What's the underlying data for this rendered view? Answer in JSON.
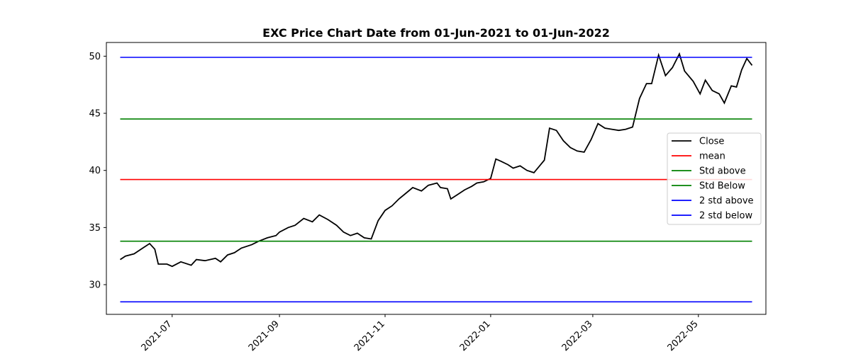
{
  "chart_data": {
    "type": "line",
    "title": "EXC Price Chart Date from 01-Jun-2021 to 01-Jun-2022",
    "xlabel": "",
    "ylabel": "",
    "xlim": [
      "2021-05-24",
      "2022-06-09"
    ],
    "ylim": [
      27.4,
      51.2
    ],
    "x_ticks": [
      "2021-07",
      "2021-09",
      "2021-11",
      "2022-01",
      "2022-03",
      "2022-05"
    ],
    "y_ticks": [
      30,
      35,
      40,
      45,
      50
    ],
    "grid": false,
    "legend_position": "center-right",
    "series": [
      {
        "name": "Close",
        "color": "#000000",
        "points": [
          [
            "2021-06-01",
            32.2
          ],
          [
            "2021-06-04",
            32.5
          ],
          [
            "2021-06-09",
            32.7
          ],
          [
            "2021-06-14",
            33.2
          ],
          [
            "2021-06-18",
            33.6
          ],
          [
            "2021-06-21",
            33.1
          ],
          [
            "2021-06-23",
            31.8
          ],
          [
            "2021-06-28",
            31.8
          ],
          [
            "2021-07-01",
            31.6
          ],
          [
            "2021-07-06",
            32.0
          ],
          [
            "2021-07-12",
            31.7
          ],
          [
            "2021-07-15",
            32.2
          ],
          [
            "2021-07-20",
            32.1
          ],
          [
            "2021-07-26",
            32.3
          ],
          [
            "2021-07-29",
            32.0
          ],
          [
            "2021-08-02",
            32.6
          ],
          [
            "2021-08-06",
            32.8
          ],
          [
            "2021-08-10",
            33.2
          ],
          [
            "2021-08-16",
            33.5
          ],
          [
            "2021-08-20",
            33.8
          ],
          [
            "2021-08-25",
            34.1
          ],
          [
            "2021-08-30",
            34.3
          ],
          [
            "2021-09-01",
            34.6
          ],
          [
            "2021-09-06",
            35.0
          ],
          [
            "2021-09-10",
            35.2
          ],
          [
            "2021-09-15",
            35.8
          ],
          [
            "2021-09-20",
            35.5
          ],
          [
            "2021-09-24",
            36.1
          ],
          [
            "2021-09-29",
            35.7
          ],
          [
            "2021-10-04",
            35.2
          ],
          [
            "2021-10-08",
            34.6
          ],
          [
            "2021-10-12",
            34.3
          ],
          [
            "2021-10-16",
            34.5
          ],
          [
            "2021-10-20",
            34.1
          ],
          [
            "2021-10-24",
            34.0
          ],
          [
            "2021-10-28",
            35.6
          ],
          [
            "2021-11-01",
            36.5
          ],
          [
            "2021-11-05",
            36.9
          ],
          [
            "2021-11-09",
            37.5
          ],
          [
            "2021-11-13",
            38.0
          ],
          [
            "2021-11-17",
            38.5
          ],
          [
            "2021-11-22",
            38.2
          ],
          [
            "2021-11-26",
            38.7
          ],
          [
            "2021-12-01",
            38.9
          ],
          [
            "2021-12-03",
            38.5
          ],
          [
            "2021-12-07",
            38.4
          ],
          [
            "2021-12-09",
            37.5
          ],
          [
            "2021-12-13",
            37.9
          ],
          [
            "2021-12-17",
            38.3
          ],
          [
            "2021-12-21",
            38.6
          ],
          [
            "2021-12-24",
            38.9
          ],
          [
            "2021-12-28",
            39.0
          ],
          [
            "2022-01-01",
            39.3
          ],
          [
            "2022-01-04",
            41.0
          ],
          [
            "2022-01-07",
            40.8
          ],
          [
            "2022-01-11",
            40.5
          ],
          [
            "2022-01-14",
            40.2
          ],
          [
            "2022-01-18",
            40.4
          ],
          [
            "2022-01-22",
            40.0
          ],
          [
            "2022-01-26",
            39.8
          ],
          [
            "2022-02-01",
            40.9
          ],
          [
            "2022-02-04",
            43.7
          ],
          [
            "2022-02-08",
            43.5
          ],
          [
            "2022-02-12",
            42.6
          ],
          [
            "2022-02-16",
            42.0
          ],
          [
            "2022-02-20",
            41.7
          ],
          [
            "2022-02-24",
            41.6
          ],
          [
            "2022-02-28",
            42.7
          ],
          [
            "2022-03-04",
            44.1
          ],
          [
            "2022-03-08",
            43.7
          ],
          [
            "2022-03-12",
            43.6
          ],
          [
            "2022-03-16",
            43.5
          ],
          [
            "2022-03-20",
            43.6
          ],
          [
            "2022-03-24",
            43.8
          ],
          [
            "2022-03-28",
            46.3
          ],
          [
            "2022-04-01",
            47.6
          ],
          [
            "2022-04-04",
            47.6
          ],
          [
            "2022-04-08",
            50.1
          ],
          [
            "2022-04-12",
            48.3
          ],
          [
            "2022-04-16",
            49.0
          ],
          [
            "2022-04-20",
            50.2
          ],
          [
            "2022-04-23",
            48.7
          ],
          [
            "2022-04-28",
            47.8
          ],
          [
            "2022-05-02",
            46.7
          ],
          [
            "2022-05-05",
            47.9
          ],
          [
            "2022-05-09",
            47.0
          ],
          [
            "2022-05-13",
            46.7
          ],
          [
            "2022-05-16",
            45.9
          ],
          [
            "2022-05-20",
            47.4
          ],
          [
            "2022-05-23",
            47.3
          ],
          [
            "2022-05-26",
            48.8
          ],
          [
            "2022-05-29",
            49.8
          ],
          [
            "2022-06-01",
            49.2
          ]
        ]
      },
      {
        "name": "mean",
        "color": "#ff0000",
        "value": 39.2,
        "x_range": [
          "2021-06-01",
          "2022-06-01"
        ]
      },
      {
        "name": "Std above",
        "color": "#008000",
        "value": 44.5,
        "x_range": [
          "2021-06-01",
          "2022-06-01"
        ]
      },
      {
        "name": "Std Below",
        "color": "#008000",
        "value": 33.8,
        "x_range": [
          "2021-06-01",
          "2022-06-01"
        ]
      },
      {
        "name": "2 std above",
        "color": "#0000ff",
        "value": 49.9,
        "x_range": [
          "2021-06-01",
          "2022-06-01"
        ]
      },
      {
        "name": "2 std below",
        "color": "#0000ff",
        "value": 28.5,
        "x_range": [
          "2021-06-01",
          "2022-06-01"
        ]
      }
    ]
  }
}
